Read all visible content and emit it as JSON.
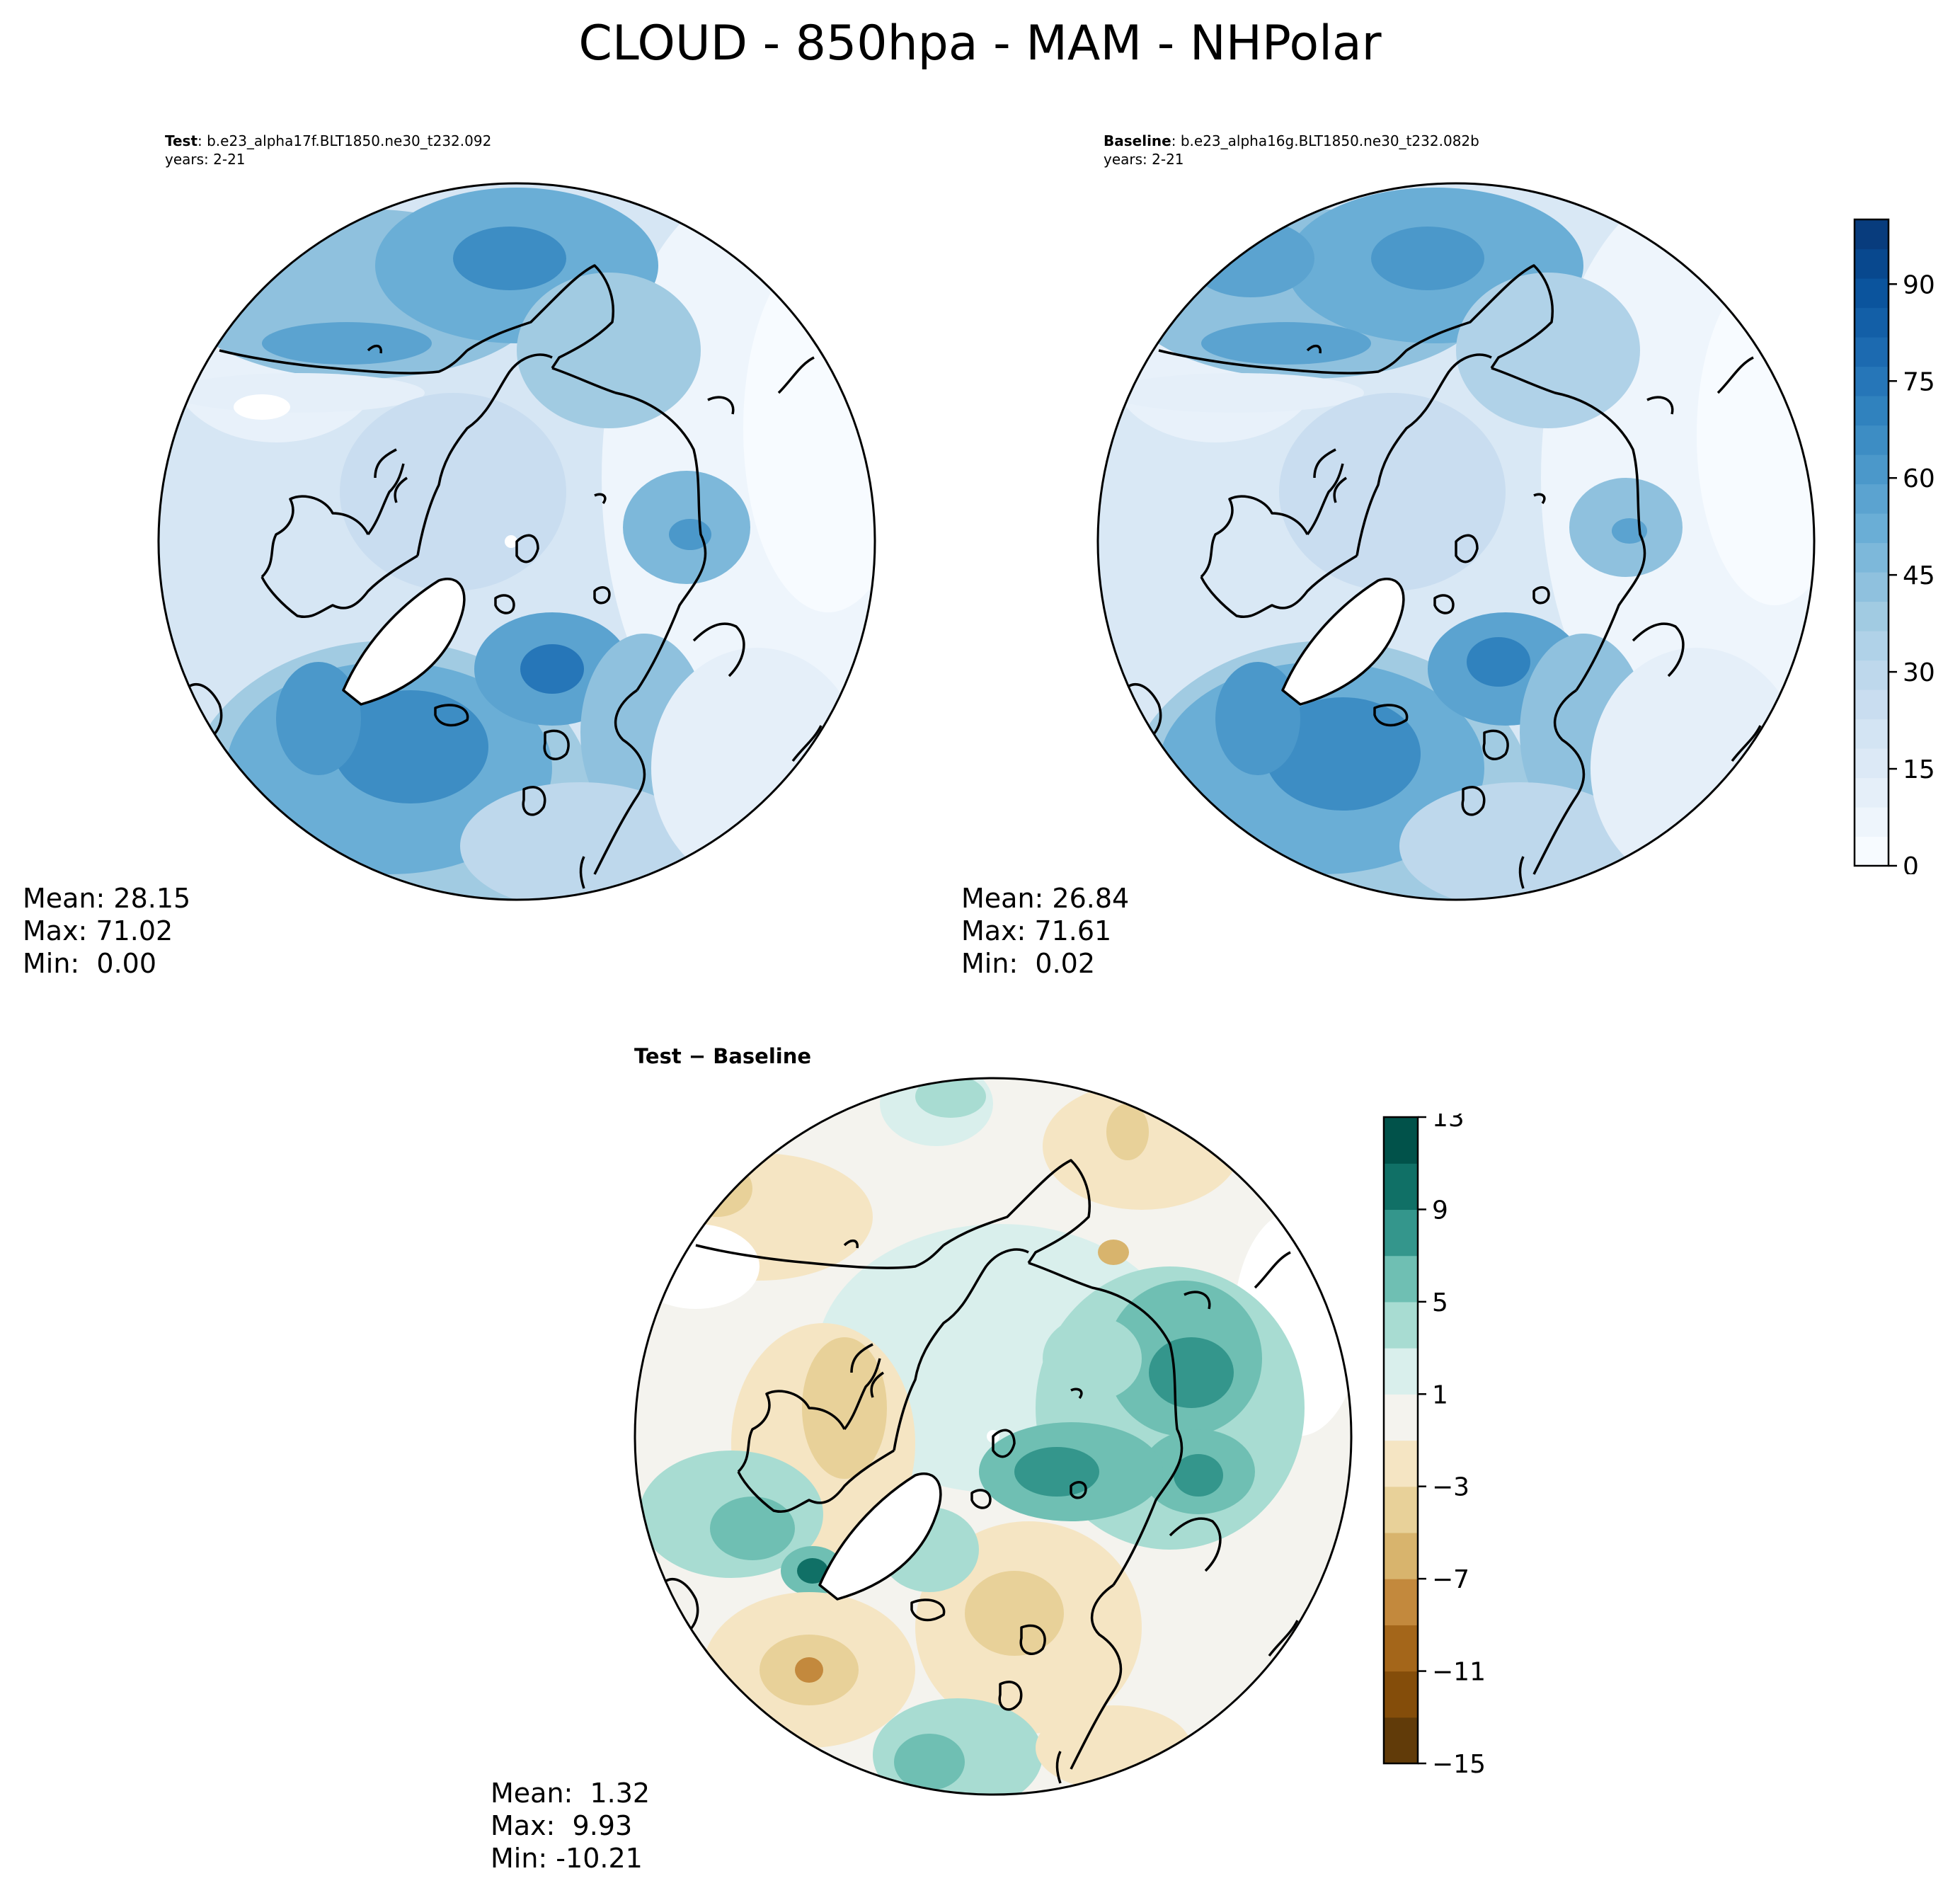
{
  "figure": {
    "title": "CLOUD - 850hpa - MAM - NHPolar"
  },
  "panels": {
    "test": {
      "label": "Test",
      "case": ": b.e23_alpha17f.BLT1850.ne30_t232.092",
      "years": "years: 2-21",
      "mean": "Mean: 28.15",
      "max": "Max: 71.02",
      "min": "Min:  0.00"
    },
    "baseline": {
      "label": "Baseline",
      "case": ": b.e23_alpha16g.BLT1850.ne30_t232.082b",
      "years": "years: 2-21",
      "mean": "Mean: 26.84",
      "max": "Max: 71.61",
      "min": "Min:  0.02"
    },
    "diff": {
      "title": "Test − Baseline",
      "mean": "Mean:  1.32",
      "max": "Max:  9.93",
      "min": "Min: -10.21"
    }
  },
  "colorbars": {
    "field": {
      "ticks": [
        "0",
        "15",
        "30",
        "45",
        "60",
        "75",
        "90"
      ],
      "tick_values": [
        0,
        15,
        30,
        45,
        60,
        75,
        90
      ],
      "vmin": 0,
      "vmax": 100,
      "colors": [
        "#f7fbff",
        "#eef5fc",
        "#e5eff9",
        "#dce9f6",
        "#d3e4f3",
        "#c9ddf0",
        "#bed8ec",
        "#b0d2e8",
        "#a1cbe2",
        "#8fc1de",
        "#7db8da",
        "#6aaed6",
        "#5ba3d0",
        "#4b98ca",
        "#3d8dc4",
        "#3082be",
        "#2676b8",
        "#1c6ab0",
        "#135fa7",
        "#0b549d",
        "#08488e",
        "#083c7d"
      ]
    },
    "diff": {
      "ticks": [
        "13",
        "9",
        "5",
        "1",
        "−3",
        "−7",
        "−11",
        "−15"
      ],
      "tick_values": [
        13,
        9,
        5,
        1,
        -3,
        -7,
        -11,
        -15
      ],
      "vmin": -15,
      "vmax": 13,
      "colors": [
        "#613b09",
        "#844d0a",
        "#a4661a",
        "#c3893d",
        "#d8b46d",
        "#e8d199",
        "#f5e5c3",
        "#f4f3ee",
        "#d9efec",
        "#a8dcd2",
        "#6fbfb3",
        "#34968c",
        "#107066",
        "#01524a"
      ]
    }
  }
}
